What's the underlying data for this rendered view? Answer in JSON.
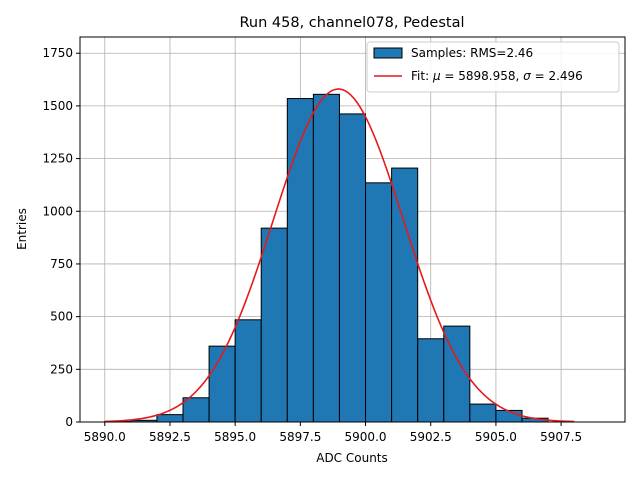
{
  "chart_data": {
    "type": "bar",
    "title": "Run 458, channel078, Pedestal",
    "xlabel": "ADC Counts",
    "ylabel": "Entries",
    "xlim": [
      5889.05,
      5909.95
    ],
    "ylim": [
      0,
      1827
    ],
    "x_ticks": [
      5890.0,
      5892.5,
      5895.0,
      5897.5,
      5900.0,
      5902.5,
      5905.0,
      5907.5
    ],
    "x_tick_labels": [
      "5890.0",
      "5892.5",
      "5895.0",
      "5897.5",
      "5900.0",
      "5902.5",
      "5905.0",
      "5907.5"
    ],
    "y_ticks": [
      0,
      250,
      500,
      750,
      1000,
      1250,
      1500,
      1750
    ],
    "y_tick_labels": [
      "0",
      "250",
      "500",
      "750",
      "1000",
      "1250",
      "1500",
      "1750"
    ],
    "grid": true,
    "legend_position": "top-right",
    "bin_width": 1,
    "bins_left": [
      5890,
      5891,
      5892,
      5893,
      5894,
      5895,
      5896,
      5897,
      5898,
      5899,
      5900,
      5901,
      5902,
      5903,
      5904,
      5905,
      5906
    ],
    "counts": [
      2,
      8,
      35,
      115,
      360,
      485,
      920,
      1535,
      1555,
      1462,
      1135,
      1205,
      395,
      455,
      85,
      55,
      18
    ],
    "series": [
      {
        "name": "Samples: RMS=2.46",
        "kind": "hist",
        "color": "#1f77b4"
      },
      {
        "name": "Fit: μ = 5898.958, σ = 2.496",
        "kind": "gaussian",
        "color": "#e41a1c",
        "mu": 5898.958,
        "sigma": 2.496,
        "amplitude": 1580,
        "x_range": [
          5890,
          5908
        ]
      }
    ],
    "legend_labels": {
      "samples": "Samples: RMS=2.46",
      "fit_prefix": "Fit: ",
      "mu_symbol": "μ",
      "mu_text": " = 5898.958, ",
      "sigma_symbol": "σ",
      "sigma_text": " = 2.496"
    }
  }
}
